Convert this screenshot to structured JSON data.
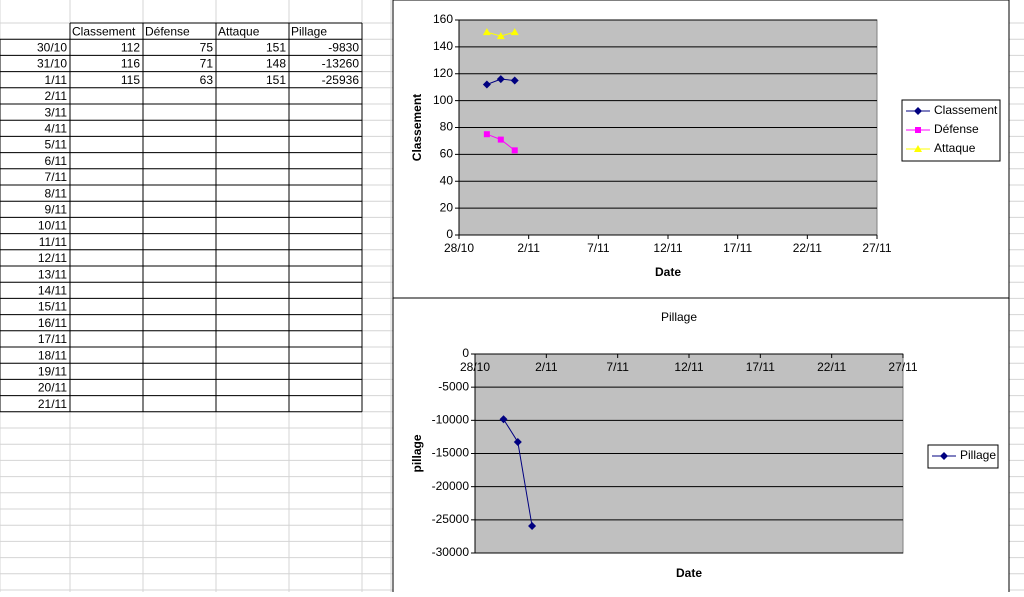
{
  "table": {
    "header": [
      "Classement",
      "Défense",
      "Attaque",
      "Pillage"
    ],
    "rows": [
      [
        "30/10",
        112,
        75,
        151,
        -9830
      ],
      [
        "31/10",
        116,
        71,
        148,
        -13260
      ],
      [
        "1/11",
        115,
        63,
        151,
        -25936
      ],
      [
        "2/11"
      ],
      [
        "3/11"
      ],
      [
        "4/11"
      ],
      [
        "5/11"
      ],
      [
        "6/11"
      ],
      [
        "7/11"
      ],
      [
        "8/11"
      ],
      [
        "9/11"
      ],
      [
        "10/11"
      ],
      [
        "11/11"
      ],
      [
        "12/11"
      ],
      [
        "13/11"
      ],
      [
        "14/11"
      ],
      [
        "15/11"
      ],
      [
        "16/11"
      ],
      [
        "17/11"
      ],
      [
        "18/11"
      ],
      [
        "19/11"
      ],
      [
        "20/11"
      ],
      [
        "21/11"
      ]
    ]
  },
  "chart_data": [
    {
      "type": "line",
      "ylabel": "Classement",
      "xlabel": "Date",
      "x": [
        "30/10",
        "31/10",
        "1/11"
      ],
      "xlim": [
        "28/10",
        "27/11"
      ],
      "xticks": [
        "28/10",
        "2/11",
        "7/11",
        "12/11",
        "17/11",
        "22/11",
        "27/11"
      ],
      "ylim": [
        0,
        160
      ],
      "yticks": [
        0,
        20,
        40,
        60,
        80,
        100,
        120,
        140,
        160
      ],
      "grid": true,
      "legend": "right",
      "series": [
        {
          "name": "Classement",
          "color": "#000080",
          "marker": "diamond",
          "values": [
            112,
            116,
            115
          ]
        },
        {
          "name": "Défense",
          "color": "#ff00ff",
          "marker": "square",
          "values": [
            75,
            71,
            63
          ]
        },
        {
          "name": "Attaque",
          "color": "#ffff00",
          "marker": "triangle",
          "values": [
            151,
            148,
            151
          ]
        }
      ]
    },
    {
      "type": "line",
      "title": "Pillage",
      "ylabel": "pillage",
      "xlabel": "Date",
      "x": [
        "30/10",
        "31/10",
        "1/11"
      ],
      "xlim": [
        "28/10",
        "27/11"
      ],
      "xticks": [
        "28/10",
        "2/11",
        "7/11",
        "12/11",
        "17/11",
        "22/11",
        "27/11"
      ],
      "ylim": [
        -30000,
        0
      ],
      "yticks": [
        -30000,
        -25000,
        -20000,
        -15000,
        -10000,
        -5000,
        0
      ],
      "grid": true,
      "legend": "right",
      "series": [
        {
          "name": "Pillage",
          "color": "#000080",
          "marker": "diamond",
          "values": [
            -9830,
            -13260,
            -25936
          ]
        }
      ]
    }
  ]
}
